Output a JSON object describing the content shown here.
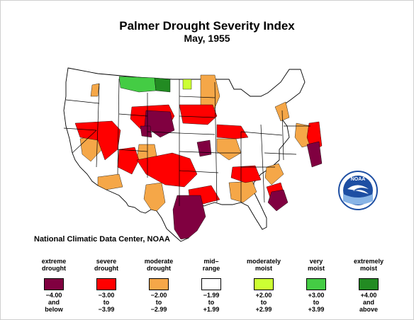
{
  "header": {
    "title": "Palmer Drought Severity Index",
    "subtitle": "May, 1955"
  },
  "credit": "National Climatic Data Center, NOAA",
  "logo": {
    "text": "NOAA",
    "colors": {
      "ring": "#1e4fa3",
      "bird": "#ffffff",
      "band": "#88b4e6"
    }
  },
  "colors": {
    "extreme_drought": "#800040",
    "severe_drought": "#ff0000",
    "moderate_drought": "#f5a748",
    "mid_range": "#ffffff",
    "moderately_moist": "#ccff33",
    "very_moist": "#44cc44",
    "extremely_moist": "#228b22",
    "boundary": "#000000"
  },
  "legend": [
    {
      "label_1": "extreme",
      "label_2": "drought",
      "range_1": "−4.00",
      "range_2": "and",
      "range_3": "below",
      "color": "#800040"
    },
    {
      "label_1": "severe",
      "label_2": "drought",
      "range_1": "−3.00",
      "range_2": "to",
      "range_3": "−3.99",
      "color": "#ff0000"
    },
    {
      "label_1": "moderate",
      "label_2": "drought",
      "range_1": "−2.00",
      "range_2": "to",
      "range_3": "−2.99",
      "color": "#f5a748"
    },
    {
      "label_1": "mid–",
      "label_2": "range",
      "range_1": "−1.99",
      "range_2": "to",
      "range_3": "+1.99",
      "color": "#ffffff"
    },
    {
      "label_1": "moderately",
      "label_2": "moist",
      "range_1": "+2.00",
      "range_2": "to",
      "range_3": "+2.99",
      "color": "#ccff33"
    },
    {
      "label_1": "very",
      "label_2": "moist",
      "range_1": "+3.00",
      "range_2": "to",
      "range_3": "+3.99",
      "color": "#44cc44"
    },
    {
      "label_1": "extremely",
      "label_2": "moist",
      "range_1": "+4.00",
      "range_2": "and",
      "range_3": "above",
      "color": "#228b22"
    }
  ]
}
